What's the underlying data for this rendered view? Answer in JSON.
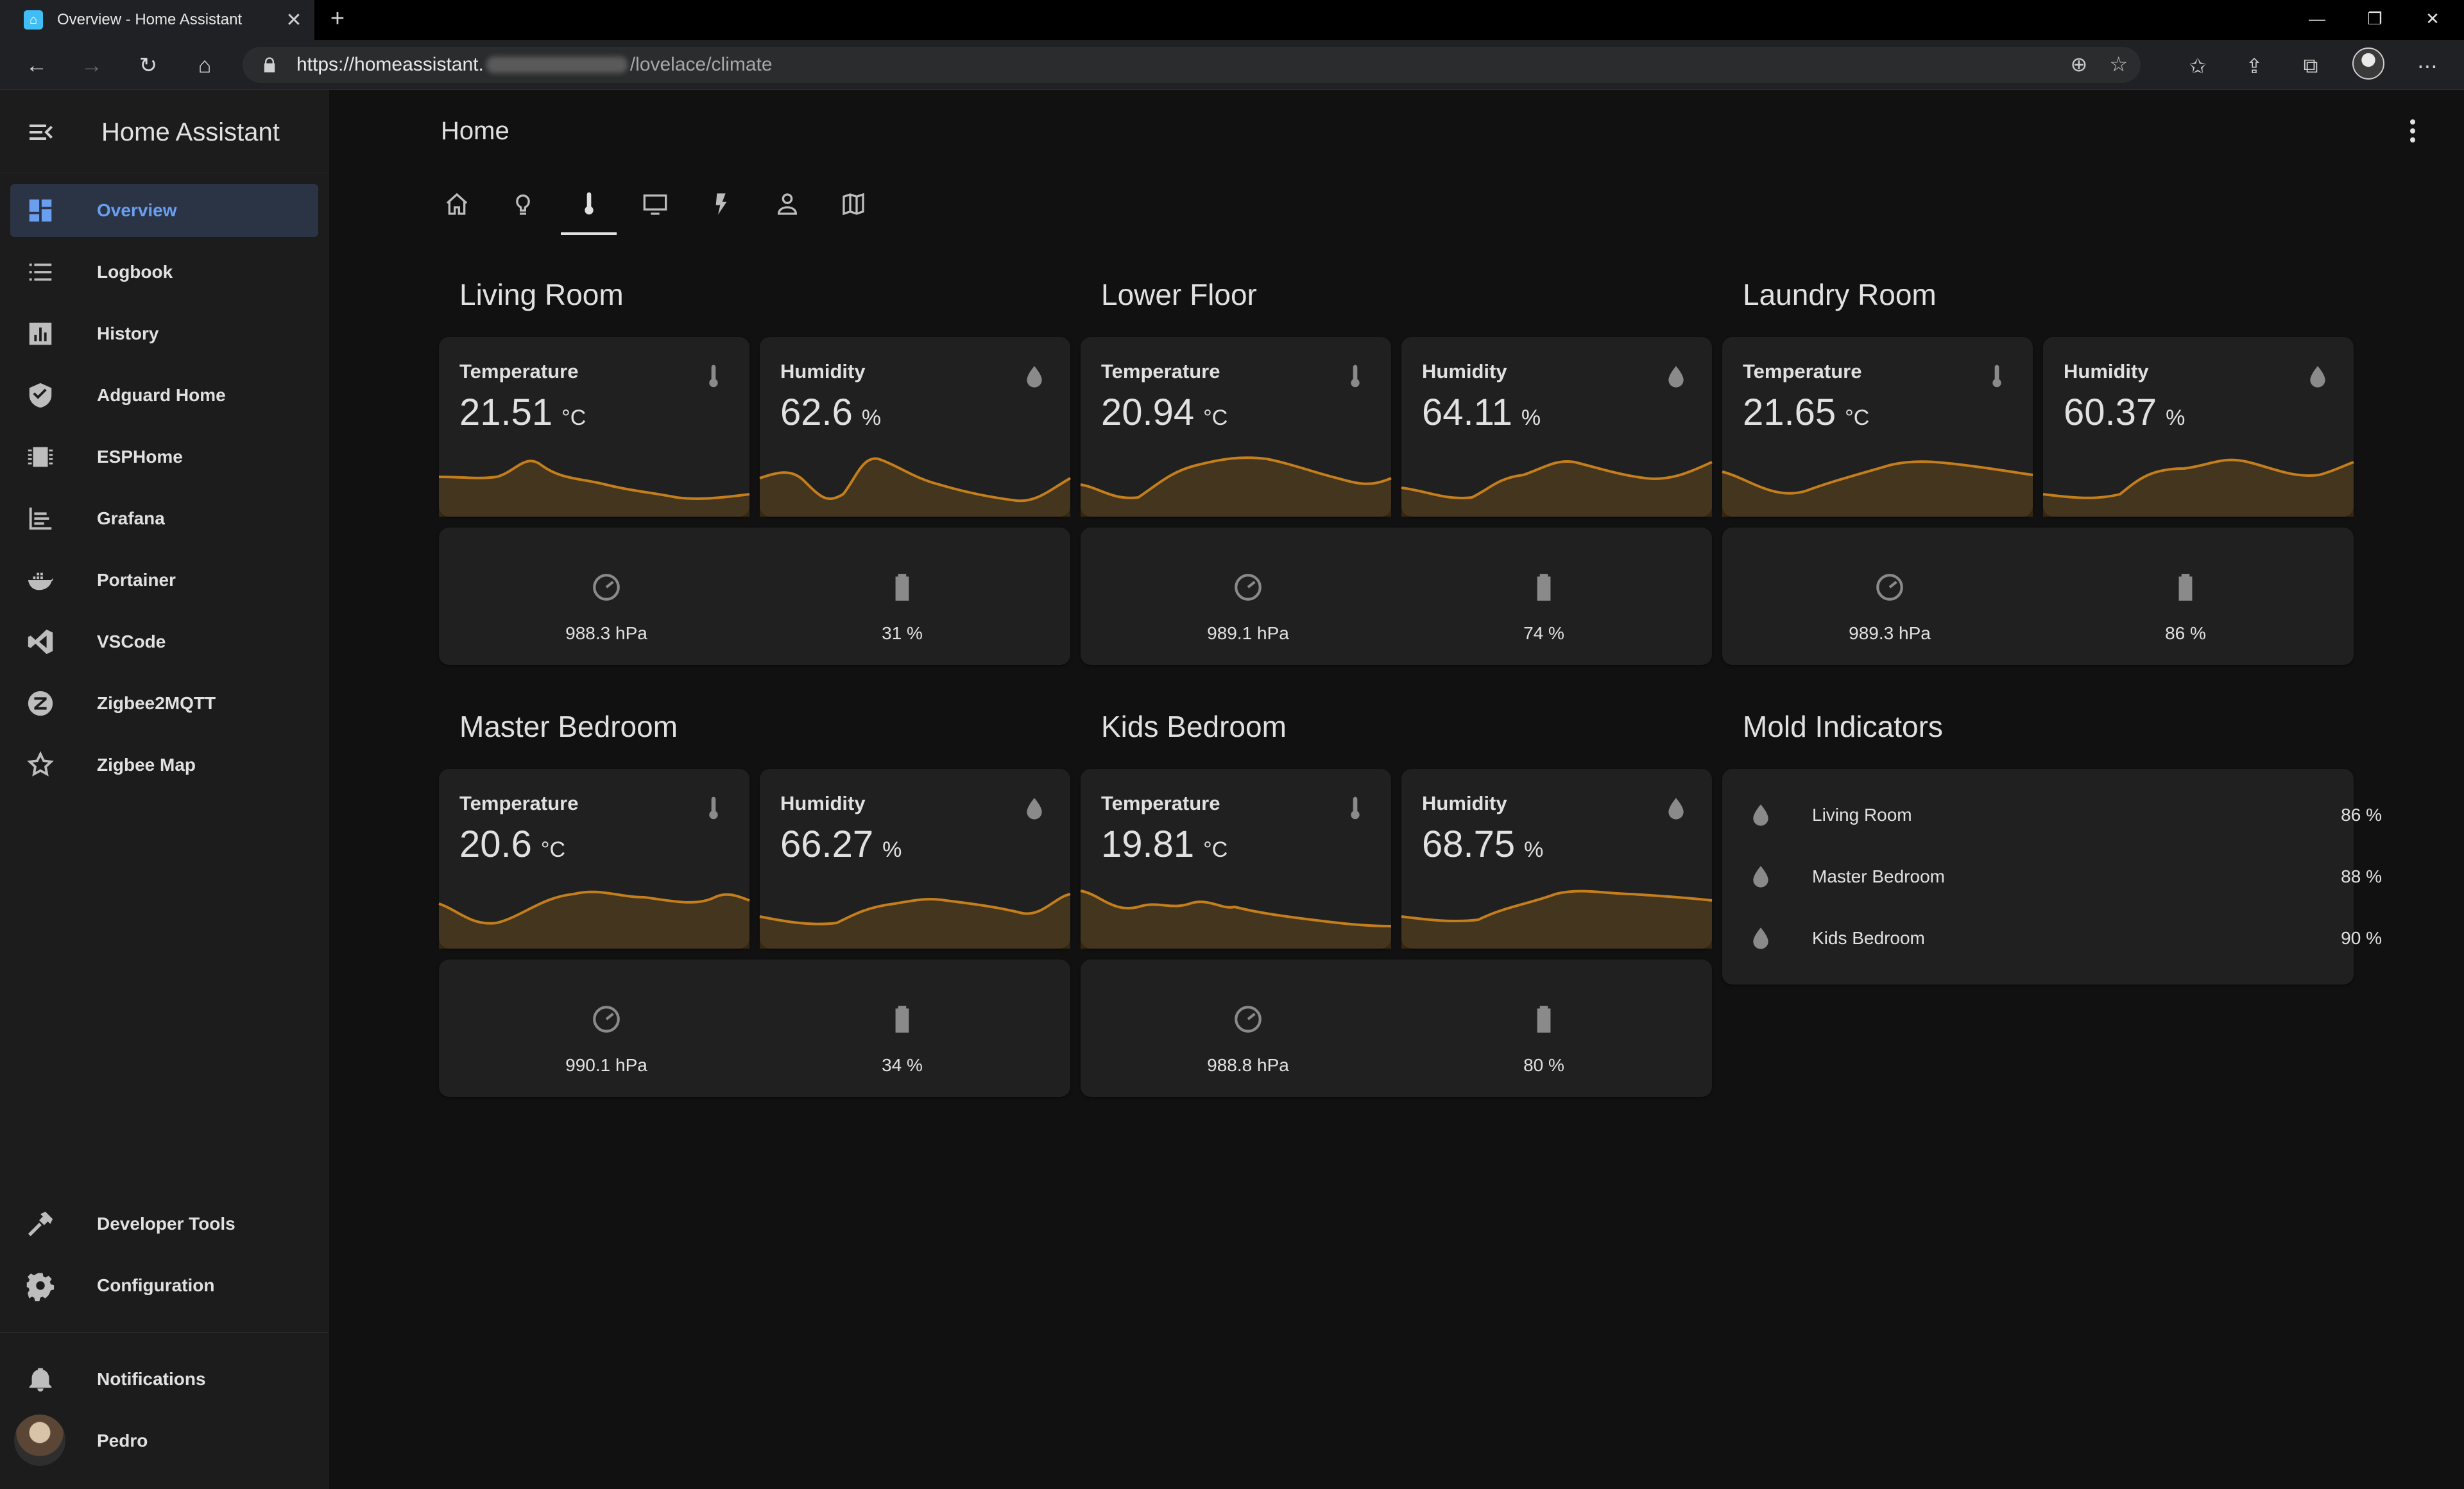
{
  "browser": {
    "tab_title": "Overview - Home Assistant",
    "url_prefix": "https://homeassistant.",
    "url_path": "/lovelace/climate"
  },
  "sidebar": {
    "title": "Home Assistant",
    "items": [
      {
        "label": "Overview",
        "icon": "dashboard-icon"
      },
      {
        "label": "Logbook",
        "icon": "list-icon"
      },
      {
        "label": "History",
        "icon": "chart-icon"
      },
      {
        "label": "Adguard Home",
        "icon": "shield-icon"
      },
      {
        "label": "ESPHome",
        "icon": "chip-icon"
      },
      {
        "label": "Grafana",
        "icon": "grafana-icon"
      },
      {
        "label": "Portainer",
        "icon": "whale-icon"
      },
      {
        "label": "VSCode",
        "icon": "vscode-icon"
      },
      {
        "label": "Zigbee2MQTT",
        "icon": "zigbee-icon"
      },
      {
        "label": "Zigbee Map",
        "icon": "map-star-icon"
      }
    ],
    "bottom": [
      {
        "label": "Developer Tools",
        "icon": "hammer-icon"
      },
      {
        "label": "Configuration",
        "icon": "gear-icon"
      }
    ],
    "notifications": "Notifications",
    "user": "Pedro"
  },
  "header": {
    "title": "Home",
    "tabs": [
      "home-icon",
      "bulb-icon",
      "thermometer-icon",
      "monitor-icon",
      "lightning-icon",
      "person-icon",
      "map-icon"
    ],
    "active_tab": 2
  },
  "accent_color": "#c47e1c",
  "rooms": [
    {
      "title": "Living Room",
      "temperature": {
        "label": "Temperature",
        "value": "21.51",
        "unit": "°C"
      },
      "humidity": {
        "label": "Humidity",
        "value": "62.6",
        "unit": "%"
      },
      "pressure": "988.3 hPa",
      "battery": "31 %"
    },
    {
      "title": "Lower Floor",
      "temperature": {
        "label": "Temperature",
        "value": "20.94",
        "unit": "°C"
      },
      "humidity": {
        "label": "Humidity",
        "value": "64.11",
        "unit": "%"
      },
      "pressure": "989.1 hPa",
      "battery": "74 %"
    },
    {
      "title": "Laundry Room",
      "temperature": {
        "label": "Temperature",
        "value": "21.65",
        "unit": "°C"
      },
      "humidity": {
        "label": "Humidity",
        "value": "60.37",
        "unit": "%"
      },
      "pressure": "989.3 hPa",
      "battery": "86 %"
    },
    {
      "title": "Master Bedroom",
      "temperature": {
        "label": "Temperature",
        "value": "20.6",
        "unit": "°C"
      },
      "humidity": {
        "label": "Humidity",
        "value": "66.27",
        "unit": "%"
      },
      "pressure": "990.1 hPa",
      "battery": "34 %"
    },
    {
      "title": "Kids Bedroom",
      "temperature": {
        "label": "Temperature",
        "value": "19.81",
        "unit": "°C"
      },
      "humidity": {
        "label": "Humidity",
        "value": "68.75",
        "unit": "%"
      },
      "pressure": "988.8 hPa",
      "battery": "80 %"
    }
  ],
  "mold": {
    "title": "Mold Indicators",
    "items": [
      {
        "name": "Living Room",
        "value": "86 %"
      },
      {
        "name": "Master Bedroom",
        "value": "88 %"
      },
      {
        "name": "Kids Bedroom",
        "value": "90 %"
      }
    ]
  }
}
